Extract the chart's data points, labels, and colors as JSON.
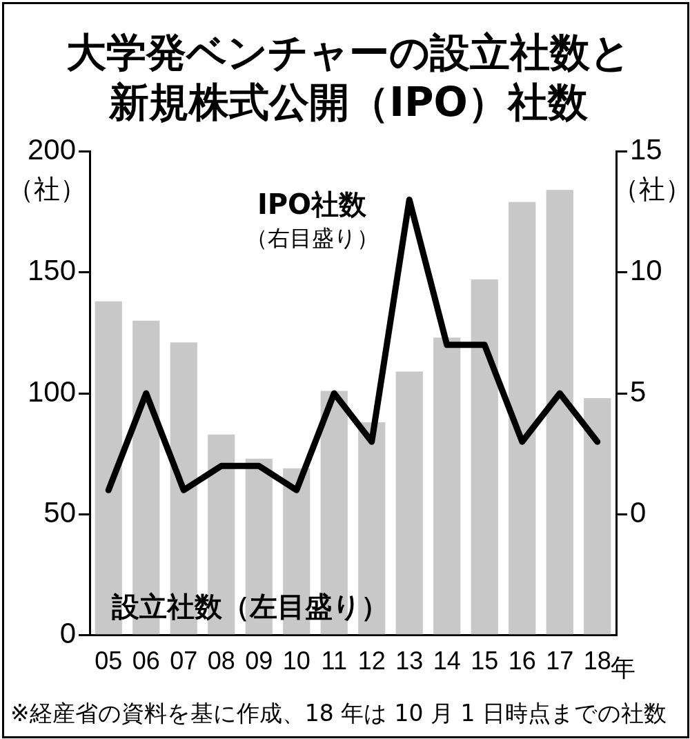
{
  "chart_data": {
    "type": "bar",
    "title": "大学発ベンチャーの設立社数と新規株式公開（IPO）社数",
    "xlabel": "年",
    "ylabel": "（社）",
    "y2label": "（社）",
    "categories": [
      "05",
      "06",
      "07",
      "08",
      "09",
      "10",
      "11",
      "12",
      "13",
      "14",
      "15",
      "16",
      "17",
      "18"
    ],
    "series": [
      {
        "color": "#c8c8c8",
        "values": [
          138,
          130,
          121,
          83,
          73,
          69,
          101,
          88,
          109,
          123,
          147,
          179,
          184,
          98
        ]
      },
      {
        "type": "line",
        "color": "#000000",
        "axis": "y2",
        "values": [
          1,
          5,
          1,
          2,
          2,
          1,
          5,
          3,
          13,
          7,
          7,
          3,
          5,
          3
        ]
      }
    ],
    "ylim": [
      0,
      200
    ],
    "yticks": [
      0,
      50,
      100,
      150,
      200
    ],
    "y2lim": [
      -5,
      15
    ],
    "y2ticks": [
      0,
      5,
      10,
      15
    ],
    "grid": false,
    "legend": false,
    "marker": "none",
    "line_style": "solid",
    "annotations": [
      "IPO社数",
      "（右目盛り）",
      "設立社数（左目盛り）",
      "※経産省の資料を基に作成、18 年は 10 月 1 日時点までの社数"
    ]
  }
}
